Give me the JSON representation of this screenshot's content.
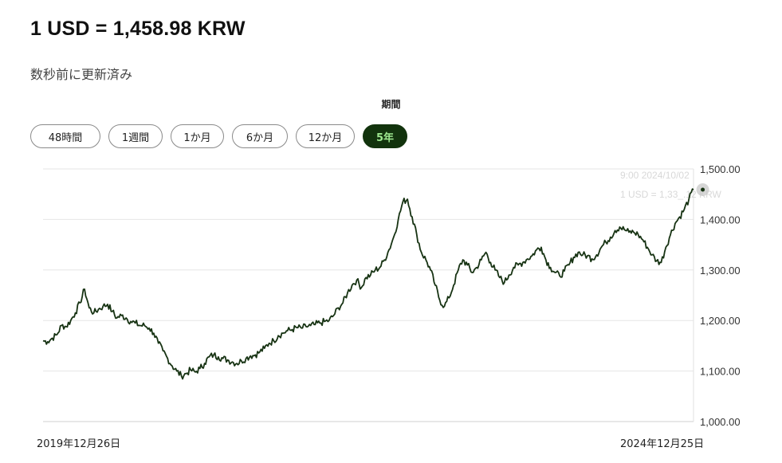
{
  "header": {
    "rate_title": "1 USD = 1,458.98 KRW",
    "updated_text": "数秒前に更新済み"
  },
  "period": {
    "label": "期間",
    "options": [
      "48時間",
      "1週間",
      "1か月",
      "6か月",
      "12か月",
      "5年"
    ],
    "selected": "5年"
  },
  "tooltip": {
    "line1": "9:00 2024/10/02",
    "line2": "1 USD = 1,33_.12 KRW"
  },
  "colors": {
    "line": "#173313",
    "accent_bg": "#12330d",
    "accent_text": "#9ee890",
    "grid": "#e6e6e6"
  },
  "chart_data": {
    "type": "line",
    "x_start_label": "2019年12月26日",
    "x_end_label": "2024年12月25日",
    "ylim": [
      1000,
      1500
    ],
    "y_ticks": [
      "1,000.00",
      "1,100.00",
      "1,200.00",
      "1,300.00",
      "1,400.00",
      "1,500.00"
    ],
    "grid": true,
    "series": [
      {
        "values": [
          1160,
          1158,
          1165,
          1172,
          1190,
          1188,
          1200,
          1215,
          1235,
          1262,
          1225,
          1215,
          1222,
          1228,
          1232,
          1218,
          1205,
          1210,
          1205,
          1198,
          1195,
          1190,
          1190,
          1185,
          1175,
          1155,
          1140,
          1125,
          1110,
          1100,
          1090,
          1095,
          1102,
          1098,
          1105,
          1115,
          1128,
          1132,
          1128,
          1125,
          1122,
          1118,
          1115,
          1120,
          1125,
          1130,
          1132,
          1138,
          1145,
          1155,
          1160,
          1170,
          1175,
          1180,
          1182,
          1186,
          1185,
          1188,
          1190,
          1192,
          1195,
          1198,
          1200,
          1210,
          1225,
          1235,
          1255,
          1270,
          1280,
          1265,
          1285,
          1290,
          1300,
          1305,
          1320,
          1340,
          1365,
          1400,
          1435,
          1440,
          1405,
          1370,
          1335,
          1320,
          1300,
          1270,
          1240,
          1228,
          1245,
          1270,
          1300,
          1320,
          1310,
          1295,
          1305,
          1320,
          1335,
          1315,
          1300,
          1285,
          1275,
          1290,
          1305,
          1310,
          1315,
          1322,
          1328,
          1340,
          1345,
          1320,
          1305,
          1295,
          1288,
          1298,
          1310,
          1325,
          1335,
          1330,
          1328,
          1322,
          1330,
          1345,
          1355,
          1365,
          1378,
          1385,
          1380,
          1375,
          1375,
          1370,
          1360,
          1345,
          1330,
          1318,
          1315,
          1345,
          1370,
          1392,
          1405,
          1420,
          1440,
          1459
        ]
      }
    ],
    "highlight_point": {
      "x_index": 143,
      "y": 1459
    }
  }
}
